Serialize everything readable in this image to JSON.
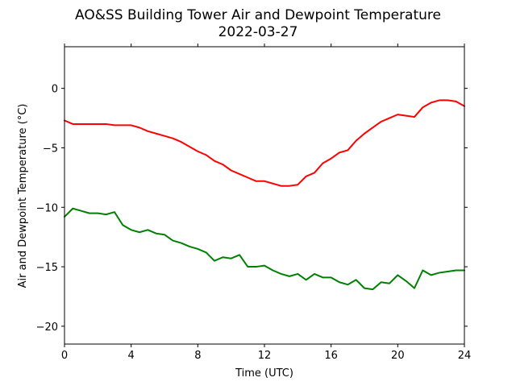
{
  "chart_data": {
    "type": "line",
    "title": "AO&SS Building Tower Air and Dewpoint Temperature",
    "subtitle": "2022-03-27",
    "xlabel": "Time (UTC)",
    "ylabel": "Air and Dewpoint Temperature (°C)",
    "xlim": [
      0,
      24
    ],
    "ylim": [
      -21.5,
      3.5
    ],
    "xticks": [
      0,
      4,
      8,
      12,
      16,
      20,
      24
    ],
    "yticks": [
      0,
      -5,
      -10,
      -15,
      -20
    ],
    "ytick_labels": [
      "0",
      "−5",
      "−10",
      "−15",
      "−20"
    ],
    "grid": false,
    "series": [
      {
        "color": "#ff0000",
        "x": [
          0,
          0.5,
          1,
          1.5,
          2,
          2.5,
          3,
          3.5,
          4,
          4.5,
          5,
          5.5,
          6,
          6.5,
          7,
          7.5,
          8,
          8.5,
          9,
          9.5,
          10,
          10.5,
          11,
          11.5,
          12,
          12.5,
          13,
          13.5,
          14,
          14.5,
          15,
          15.5,
          16,
          16.5,
          17,
          17.5,
          18,
          18.5,
          19,
          19.5,
          20,
          20.5,
          21,
          21.5,
          22,
          22.5,
          23,
          23.5,
          24
        ],
        "y": [
          -2.7,
          -3.0,
          -3.0,
          -3.0,
          -3.0,
          -3.0,
          -3.1,
          -3.1,
          -3.1,
          -3.3,
          -3.6,
          -3.8,
          -4.0,
          -4.2,
          -4.5,
          -4.9,
          -5.3,
          -5.6,
          -6.1,
          -6.4,
          -6.9,
          -7.2,
          -7.5,
          -7.8,
          -7.8,
          -8.0,
          -8.2,
          -8.2,
          -8.1,
          -7.4,
          -7.1,
          -6.3,
          -5.9,
          -5.4,
          -5.2,
          -4.4,
          -3.8,
          -3.3,
          -2.8,
          -2.5,
          -2.2,
          -2.3,
          -2.4,
          -1.6,
          -1.2,
          -1.0,
          -1.0,
          -1.1,
          -1.5
        ]
      },
      {
        "color": "#008000",
        "x": [
          0,
          0.5,
          1,
          1.5,
          2,
          2.5,
          3,
          3.5,
          4,
          4.5,
          5,
          5.5,
          6,
          6.5,
          7,
          7.5,
          8,
          8.5,
          9,
          9.5,
          10,
          10.5,
          11,
          11.5,
          12,
          12.5,
          13,
          13.5,
          14,
          14.5,
          15,
          15.5,
          16,
          16.5,
          17,
          17.5,
          18,
          18.5,
          19,
          19.5,
          20,
          20.5,
          21,
          21.5,
          22,
          22.5,
          23,
          23.5,
          24
        ],
        "y": [
          -10.8,
          -10.1,
          -10.3,
          -10.5,
          -10.5,
          -10.6,
          -10.4,
          -11.5,
          -11.9,
          -12.1,
          -11.9,
          -12.2,
          -12.3,
          -12.8,
          -13.0,
          -13.3,
          -13.5,
          -13.8,
          -14.5,
          -14.2,
          -14.3,
          -14.0,
          -15.0,
          -15.0,
          -14.9,
          -15.3,
          -15.6,
          -15.8,
          -15.6,
          -16.1,
          -15.6,
          -15.9,
          -15.9,
          -16.3,
          -16.5,
          -16.1,
          -16.8,
          -16.9,
          -16.3,
          -16.4,
          -15.7,
          -16.2,
          -16.8,
          -15.3,
          -15.7,
          -15.5,
          -15.4,
          -15.3,
          -15.3
        ]
      }
    ]
  }
}
